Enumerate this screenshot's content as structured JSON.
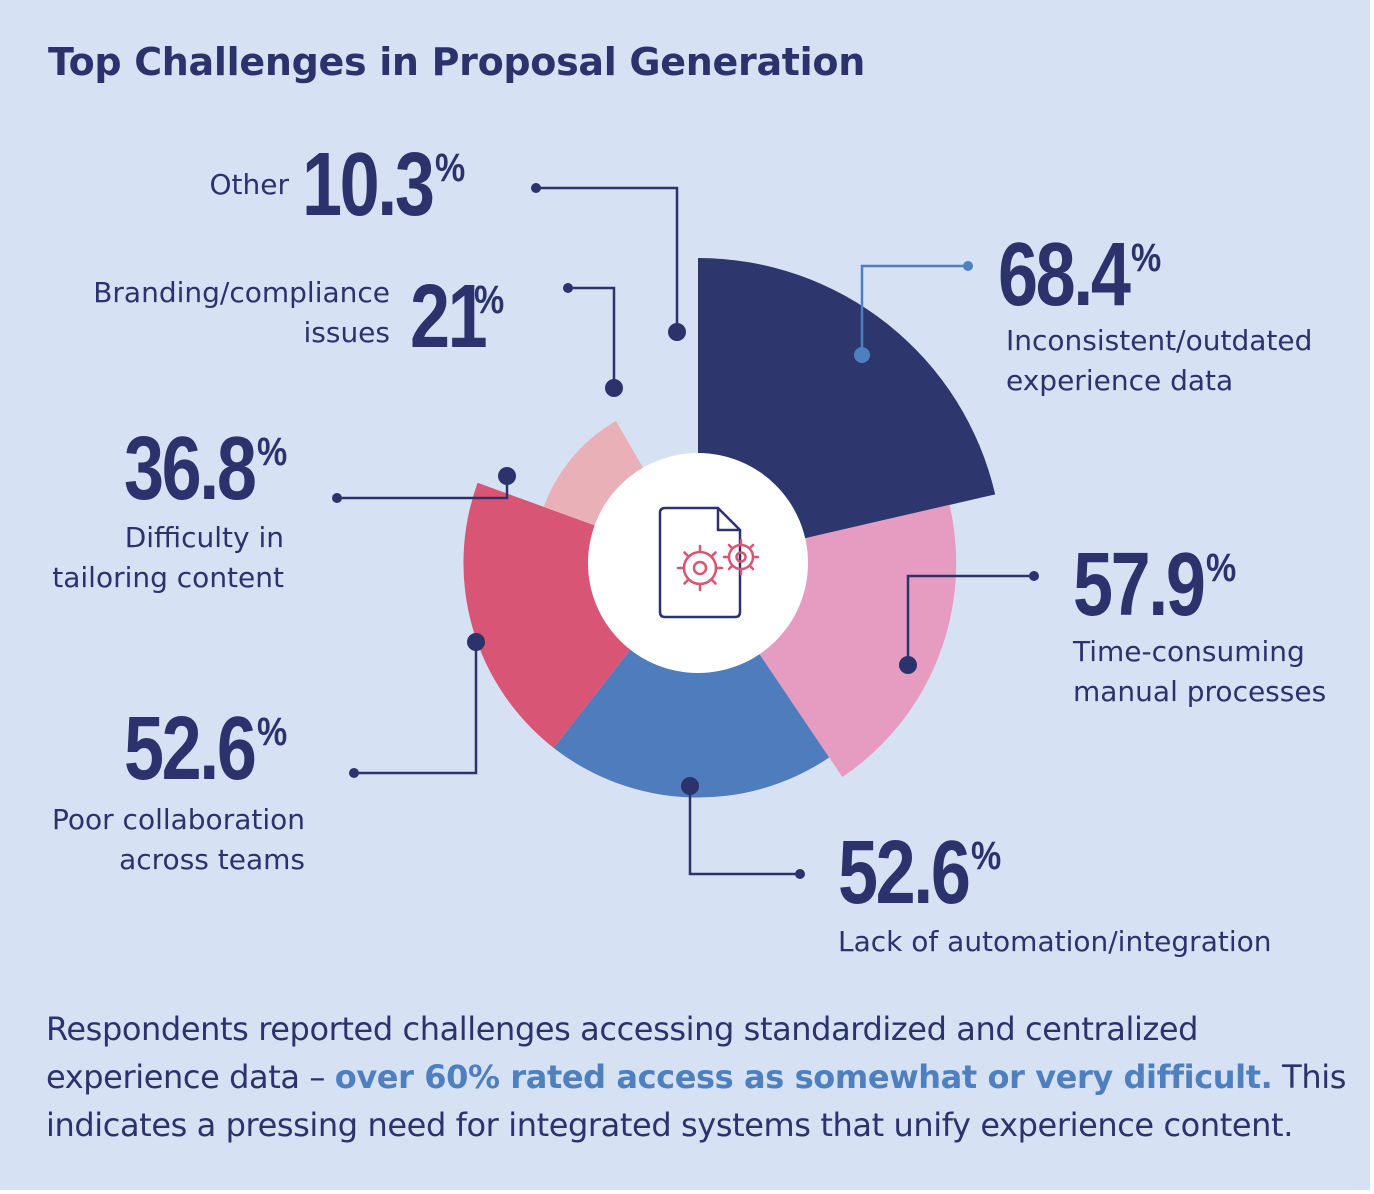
{
  "title": "Top Challenges in Proposal Generation",
  "chart_data": {
    "type": "pie",
    "slices": [
      {
        "label": "Inconsistent/outdated experience data",
        "value": 68.4,
        "value_label": "68.4",
        "color": "#2e366e"
      },
      {
        "label": "Time-consuming manual processes",
        "value": 57.9,
        "value_label": "57.9",
        "color": "#e69cc0"
      },
      {
        "label": "Lack of automation/integration",
        "value": 52.6,
        "value_label": "52.6",
        "color": "#4f7cbc"
      },
      {
        "label": "Poor collaboration across teams",
        "value": 52.6,
        "value_label": "52.6",
        "color": "#d95575"
      },
      {
        "label": "Difficulty in tailoring content",
        "value": 36.8,
        "value_label": "36.8",
        "color": "#eab0b8"
      },
      {
        "label": "Branding/compliance issues",
        "value": 21,
        "value_label": "21",
        "color": "#7ea6d8"
      },
      {
        "label": "Other",
        "value": 10.3,
        "value_label": "10.3",
        "color": "#f1d1e2"
      }
    ],
    "percent_sign": "%",
    "center_icon": "document-gears-icon"
  },
  "labels": {
    "inconsistent": [
      "Inconsistent/outdated",
      "experience data"
    ],
    "time": [
      "Time-consuming",
      "manual processes"
    ],
    "automation": [
      "Lack of automation/integration"
    ],
    "collab": [
      "Poor collaboration",
      "across teams"
    ],
    "tailoring": [
      "Difficulty in",
      "tailoring content"
    ],
    "branding": [
      "Branding/compliance",
      "issues"
    ],
    "other": [
      "Other"
    ]
  },
  "footer": {
    "text_before": "Respondents reported challenges accessing standardized and centralized experience data – ",
    "highlight": "over 60% rated access as somewhat or very difficult.",
    "text_after": " This indicates a pressing need for integrated systems that unify experience content."
  },
  "colors": {
    "text": "#2c326c",
    "background": "#d6e1f3",
    "highlight": "#4e7fbf",
    "icon": "#d95575"
  }
}
